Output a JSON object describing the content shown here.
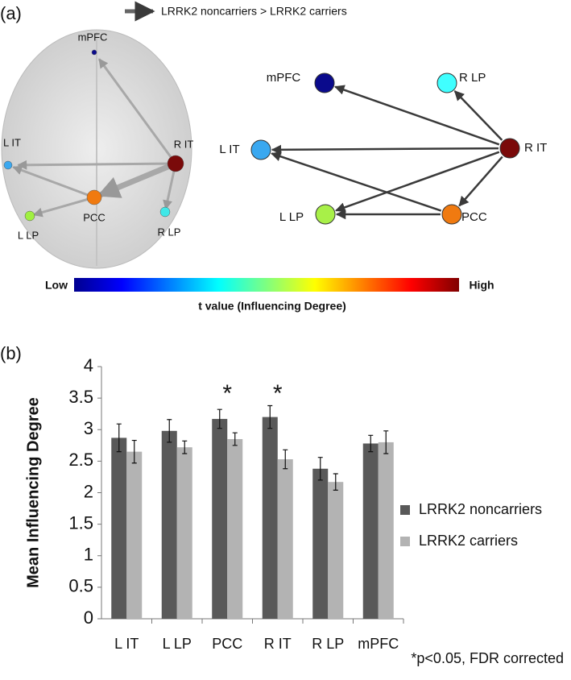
{
  "figure": {
    "panel_a_label": "(a)",
    "panel_b_label": "(b)"
  },
  "diagram": {
    "legend_text": "LRRK2 noncarriers > LRRK2 carriers",
    "brain_nodes": [
      {
        "label": "mPFC",
        "color": "#0a0a8c"
      },
      {
        "label": "L IT",
        "color": "#3aa8f0"
      },
      {
        "label": "R IT",
        "color": "#7a0a0a"
      },
      {
        "label": "PCC",
        "color": "#f07a10"
      },
      {
        "label": "L LP",
        "color": "#a0f040"
      },
      {
        "label": "R LP",
        "color": "#40e8e8"
      }
    ],
    "network_nodes": [
      {
        "label": "mPFC",
        "color": "#0a0a8c"
      },
      {
        "label": "R LP",
        "color": "#40ffff"
      },
      {
        "label": "L IT",
        "color": "#3aa8f0"
      },
      {
        "label": "R IT",
        "color": "#7a0a0a"
      },
      {
        "label": "L LP",
        "color": "#a8f048"
      },
      {
        "label": "PCC",
        "color": "#f07a10"
      }
    ],
    "colorbar": {
      "low": "Low",
      "high": "High",
      "title": "t value (Influencing Degree)"
    }
  },
  "chart_data": {
    "type": "bar",
    "y_label": "Mean Influencing Degree",
    "categories": [
      "L IT",
      "L LP",
      "PCC",
      "R IT",
      "R LP",
      "mPFC"
    ],
    "series": [
      {
        "name": "LRRK2 noncarriers",
        "color": "#595959",
        "values": [
          2.87,
          2.98,
          3.17,
          3.2,
          2.38,
          2.78
        ],
        "errors": [
          0.22,
          0.18,
          0.15,
          0.18,
          0.18,
          0.13
        ]
      },
      {
        "name": "LRRK2 carriers",
        "color": "#b3b3b3",
        "values": [
          2.65,
          2.72,
          2.85,
          2.53,
          2.17,
          2.8
        ],
        "errors": [
          0.18,
          0.1,
          0.1,
          0.15,
          0.13,
          0.18
        ]
      }
    ],
    "ylim": [
      0,
      4
    ],
    "yticks": [
      0,
      0.5,
      1,
      1.5,
      2,
      2.5,
      3,
      3.5,
      4
    ],
    "annotations": [
      {
        "category": "PCC",
        "text": "*"
      },
      {
        "category": "R IT",
        "text": "*"
      }
    ],
    "note": "*p<0.05, FDR corrected"
  }
}
